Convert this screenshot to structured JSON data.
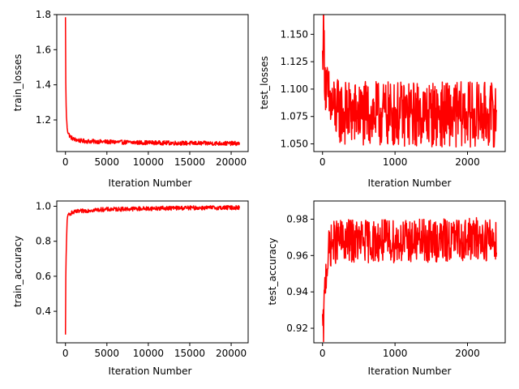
{
  "chart_data": [
    {
      "type": "line",
      "ylabel": "train_losses",
      "xlabel": "Iteration Number",
      "xlim": [
        -1050,
        22050
      ],
      "ylim": [
        1.02,
        1.8
      ],
      "xticks": [
        0,
        5000,
        10000,
        15000,
        20000
      ],
      "xtick_labels": [
        "0",
        "5000",
        "10000",
        "15000",
        "20000"
      ],
      "yticks": [
        1.2,
        1.4,
        1.6,
        1.8
      ],
      "ytick_labels": [
        "1.2",
        "1.4",
        "1.6",
        "1.8"
      ],
      "color": "#ff0000",
      "grid": false,
      "series": [
        {
          "x": [
            0,
            20,
            40,
            60,
            80,
            100,
            150,
            200,
            300,
            400,
            500,
            700,
            1000,
            1500,
            2000,
            3000,
            5000,
            8000,
            11000,
            14000,
            17000,
            21000
          ],
          "y": [
            1.78,
            1.5,
            1.42,
            1.33,
            1.28,
            1.24,
            1.19,
            1.16,
            1.13,
            1.12,
            1.11,
            1.1,
            1.09,
            1.085,
            1.08,
            1.078,
            1.075,
            1.072,
            1.07,
            1.068,
            1.067,
            1.066
          ],
          "noise": 0.012
        }
      ]
    },
    {
      "type": "line",
      "ylabel": "test_losses",
      "xlabel": "Iteration Number",
      "xlim": [
        -120,
        2520
      ],
      "ylim": [
        1.043,
        1.168
      ],
      "xticks": [
        0,
        1000,
        2000
      ],
      "xtick_labels": [
        "0",
        "1000",
        "2000"
      ],
      "yticks": [
        1.05,
        1.075,
        1.1,
        1.125,
        1.15
      ],
      "ytick_labels": [
        "1.050",
        "1.075",
        "1.100",
        "1.125",
        "1.150"
      ],
      "color": "#ff0000",
      "grid": false,
      "series": [
        {
          "x": [
            0,
            5,
            10,
            20,
            30,
            50,
            80,
            120,
            200,
            300,
            500,
            800,
            1200,
            1600,
            2000,
            2400
          ],
          "y": [
            1.12,
            1.15,
            1.164,
            1.14,
            1.12,
            1.1,
            1.09,
            1.085,
            1.08,
            1.078,
            1.077,
            1.077,
            1.077,
            1.077,
            1.077,
            1.077
          ],
          "noise": 0.03
        }
      ]
    },
    {
      "type": "line",
      "ylabel": "train_accuracy",
      "xlabel": "Iteration Number",
      "xlim": [
        -1050,
        22050
      ],
      "ylim": [
        0.22,
        1.03
      ],
      "xticks": [
        0,
        5000,
        10000,
        15000,
        20000
      ],
      "xtick_labels": [
        "0",
        "5000",
        "10000",
        "15000",
        "20000"
      ],
      "yticks": [
        0.4,
        0.6,
        0.8,
        1.0
      ],
      "ytick_labels": [
        "0.4",
        "0.6",
        "0.8",
        "1.0"
      ],
      "color": "#ff0000",
      "grid": false,
      "series": [
        {
          "x": [
            0,
            20,
            50,
            100,
            150,
            200,
            300,
            400,
            600,
            1000,
            1500,
            2000,
            3000,
            5000,
            8000,
            11000,
            14000,
            17000,
            21000
          ],
          "y": [
            0.26,
            0.45,
            0.65,
            0.75,
            0.85,
            0.92,
            0.94,
            0.955,
            0.96,
            0.965,
            0.97,
            0.972,
            0.978,
            0.982,
            0.985,
            0.988,
            0.99,
            0.991,
            0.992
          ],
          "noise": 0.012
        }
      ]
    },
    {
      "type": "line",
      "ylabel": "test_accuracy",
      "xlabel": "Iteration Number",
      "xlim": [
        -120,
        2520
      ],
      "ylim": [
        0.912,
        0.99
      ],
      "xticks": [
        0,
        1000,
        2000
      ],
      "xtick_labels": [
        "0",
        "1000",
        "2000"
      ],
      "yticks": [
        0.92,
        0.94,
        0.96,
        0.98
      ],
      "ytick_labels": [
        "0.92",
        "0.94",
        "0.96",
        "0.98"
      ],
      "color": "#ff0000",
      "grid": false,
      "series": [
        {
          "x": [
            0,
            10,
            20,
            30,
            50,
            80,
            100,
            150,
            200,
            400,
            800,
            1200,
            1600,
            2000,
            2400
          ],
          "y": [
            0.92,
            0.918,
            0.928,
            0.94,
            0.952,
            0.96,
            0.965,
            0.967,
            0.968,
            0.968,
            0.968,
            0.968,
            0.968,
            0.969,
            0.969
          ],
          "noise": 0.012
        }
      ]
    }
  ]
}
